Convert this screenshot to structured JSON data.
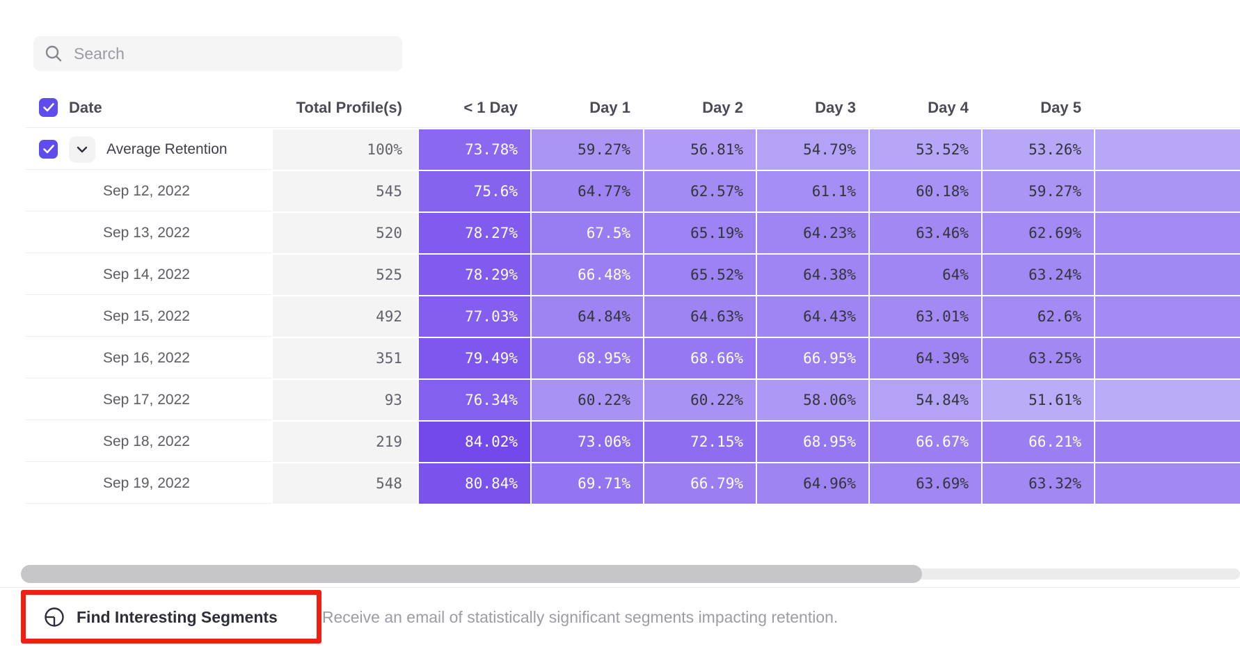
{
  "search": {
    "placeholder": "Search"
  },
  "table": {
    "columns": [
      "Date",
      "Total Profile(s)",
      "< 1 Day",
      "Day 1",
      "Day 2",
      "Day 3",
      "Day 4",
      "Day 5"
    ],
    "rows": [
      {
        "label": "Average Retention",
        "total": "100%",
        "expandable": true,
        "values": [
          73.78,
          59.27,
          56.81,
          54.79,
          53.52,
          53.26
        ]
      },
      {
        "label": "Sep 12, 2022",
        "total": "545",
        "values": [
          75.6,
          64.77,
          62.57,
          61.1,
          60.18,
          59.27
        ]
      },
      {
        "label": "Sep 13, 2022",
        "total": "520",
        "values": [
          78.27,
          67.5,
          65.19,
          64.23,
          63.46,
          62.69
        ]
      },
      {
        "label": "Sep 14, 2022",
        "total": "525",
        "values": [
          78.29,
          66.48,
          65.52,
          64.38,
          64,
          63.24
        ]
      },
      {
        "label": "Sep 15, 2022",
        "total": "492",
        "values": [
          77.03,
          64.84,
          64.63,
          64.43,
          63.01,
          62.6
        ]
      },
      {
        "label": "Sep 16, 2022",
        "total": "351",
        "values": [
          79.49,
          68.95,
          68.66,
          66.95,
          64.39,
          63.25
        ]
      },
      {
        "label": "Sep 17, 2022",
        "total": "93",
        "values": [
          76.34,
          60.22,
          60.22,
          58.06,
          54.84,
          51.61
        ]
      },
      {
        "label": "Sep 18, 2022",
        "total": "219",
        "values": [
          84.02,
          73.06,
          72.15,
          68.95,
          66.67,
          66.21
        ]
      },
      {
        "label": "Sep 19, 2022",
        "total": "548",
        "values": [
          80.84,
          69.71,
          66.79,
          64.96,
          63.69,
          63.32
        ]
      }
    ],
    "value_suffix": "%"
  },
  "heatmap": {
    "light_color": "#bfb1f8",
    "dark_color": "#7146ec",
    "min_value": 50,
    "max_value": 85,
    "white_text_min": 66,
    "dark_text_color": "#34343c",
    "light_text_color": "#ffffff"
  },
  "colors": {
    "accent_purple": "#5f4cef",
    "annotation_red": "#ee2012"
  },
  "footer": {
    "button_label": "Find Interesting Segments",
    "description": "Receive an email of statistically significant segments impacting retention."
  }
}
